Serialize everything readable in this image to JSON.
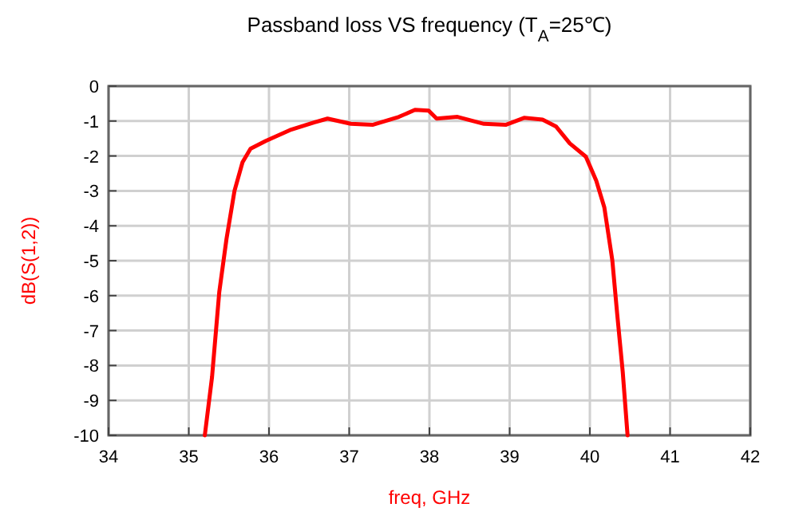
{
  "chart_data": {
    "type": "line",
    "title": "Passband loss VS frequency (T$_{A}$=25℃)",
    "xlabel": "freq, GHz",
    "ylabel": "dB(S(1,2))",
    "xlim": [
      34,
      42
    ],
    "xticks": [
      34,
      35,
      36,
      37,
      38,
      39,
      40,
      41,
      42
    ],
    "ylim": [
      -10,
      0
    ],
    "yticks": [
      0,
      -1,
      -2,
      -3,
      -4,
      -5,
      -6,
      -7,
      -8,
      -9,
      -10
    ],
    "grid": true,
    "marker": "none",
    "line_style": "solid",
    "series": [
      {
        "color": "#ff0000",
        "x": [
          35.2,
          35.29,
          35.38,
          35.47,
          35.57,
          35.67,
          35.77,
          35.96,
          36.26,
          36.56,
          36.73,
          37.02,
          37.29,
          37.62,
          37.82,
          37.99,
          38.09,
          38.35,
          38.68,
          38.95,
          39.18,
          39.41,
          39.58,
          39.75,
          39.95,
          40.08,
          40.18,
          40.28,
          40.34,
          40.41,
          40.47
        ],
        "values": [
          -10,
          -8.33,
          -5.9,
          -4.38,
          -3,
          -2.18,
          -1.79,
          -1.57,
          -1.26,
          -1.04,
          -0.93,
          -1.08,
          -1.11,
          -0.88,
          -0.68,
          -0.7,
          -0.93,
          -0.88,
          -1.08,
          -1.11,
          -0.91,
          -0.96,
          -1.16,
          -1.64,
          -2.02,
          -2.71,
          -3.47,
          -4.99,
          -6.51,
          -8.19,
          -10
        ]
      }
    ]
  }
}
